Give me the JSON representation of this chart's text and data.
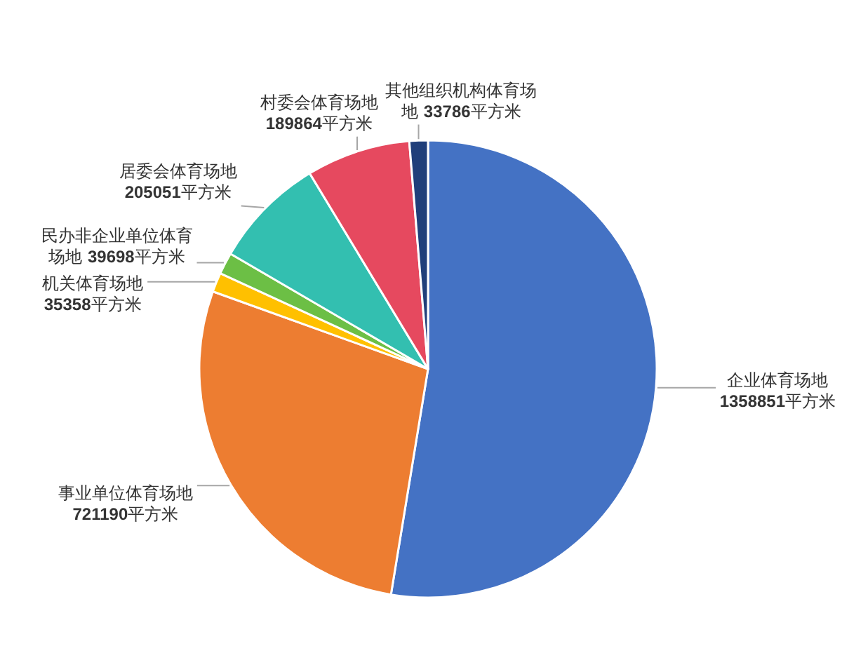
{
  "chart_data": {
    "type": "pie",
    "categories": [
      "企业体育场地",
      "事业单位体育场地",
      "机关体育场地",
      "民办非企业单位体育场地",
      "居委会体育场地",
      "村委会体育场地",
      "其他组织机构体育场地"
    ],
    "values": [
      1358851,
      721190,
      35358,
      39698,
      205051,
      189864,
      33786
    ],
    "colors": [
      "#4472c4",
      "#ed7d31",
      "#ffc000",
      "#6cbf45",
      "#33bfb0",
      "#e6495f",
      "#203f7a"
    ],
    "value_labels": [
      "1358851平方米",
      "721190平方米",
      "35358平方米",
      "39698平方米",
      "205051平方米",
      "189864平方米",
      "33786平方米"
    ]
  }
}
